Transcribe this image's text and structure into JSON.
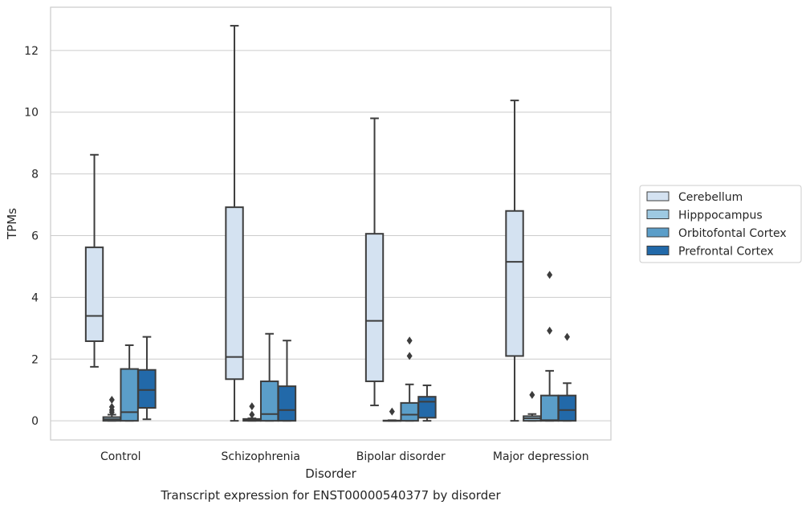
{
  "chart_data": {
    "type": "box",
    "title": "",
    "xlabel": "Disorder",
    "ylabel": "TPMs",
    "caption": "Transcript expression for ENST00000540377 by disorder",
    "ylim": [
      -0.62,
      13.4
    ],
    "yticks": [
      0,
      2,
      4,
      6,
      8,
      10,
      12
    ],
    "grid": true,
    "legend_position": "right",
    "categories": [
      "Control",
      "Schizophrenia",
      "Bipolar disorder",
      "Major depression"
    ],
    "series": [
      {
        "name": "Cerebellum",
        "color": "#d4e2f1",
        "boxes": [
          {
            "whislo": 1.75,
            "q1": 2.58,
            "med": 3.4,
            "q3": 5.62,
            "whishi": 8.62,
            "fliers": []
          },
          {
            "whislo": 0.0,
            "q1": 1.35,
            "med": 2.07,
            "q3": 6.92,
            "whishi": 12.8,
            "fliers": []
          },
          {
            "whislo": 0.5,
            "q1": 1.28,
            "med": 3.24,
            "q3": 6.06,
            "whishi": 9.8,
            "fliers": []
          },
          {
            "whislo": 0.0,
            "q1": 2.1,
            "med": 5.15,
            "q3": 6.8,
            "whishi": 10.38,
            "fliers": []
          }
        ]
      },
      {
        "name": "Hipppocampus",
        "color": "#9ec9e2",
        "boxes": [
          {
            "whislo": 0.0,
            "q1": 0.0,
            "med": 0.05,
            "q3": 0.12,
            "whishi": 0.2,
            "fliers": [
              0.28,
              0.35,
              0.45,
              0.68
            ]
          },
          {
            "whislo": 0.0,
            "q1": 0.0,
            "med": 0.02,
            "q3": 0.06,
            "whishi": 0.08,
            "fliers": [
              0.2,
              0.47
            ]
          },
          {
            "whislo": 0.0,
            "q1": 0.0,
            "med": 0.0,
            "q3": 0.01,
            "whishi": 0.02,
            "fliers": [
              0.3
            ]
          },
          {
            "whislo": 0.0,
            "q1": 0.0,
            "med": 0.08,
            "q3": 0.15,
            "whishi": 0.22,
            "fliers": [
              0.84
            ]
          }
        ]
      },
      {
        "name": "Orbitofontal Cortex",
        "color": "#5b9ec9",
        "boxes": [
          {
            "whislo": 0.0,
            "q1": 0.0,
            "med": 0.28,
            "q3": 1.68,
            "whishi": 2.45,
            "fliers": []
          },
          {
            "whislo": 0.0,
            "q1": 0.0,
            "med": 0.22,
            "q3": 1.28,
            "whishi": 2.82,
            "fliers": []
          },
          {
            "whislo": 0.0,
            "q1": 0.0,
            "med": 0.2,
            "q3": 0.58,
            "whishi": 1.18,
            "fliers": [
              2.1,
              2.6
            ]
          },
          {
            "whislo": 0.0,
            "q1": 0.0,
            "med": 0.02,
            "q3": 0.82,
            "whishi": 1.62,
            "fliers": [
              2.92,
              4.73
            ]
          }
        ]
      },
      {
        "name": "Prefrontal Cortex",
        "color": "#2269a9",
        "boxes": [
          {
            "whislo": 0.05,
            "q1": 0.42,
            "med": 1.0,
            "q3": 1.65,
            "whishi": 2.72,
            "fliers": []
          },
          {
            "whislo": 0.0,
            "q1": 0.0,
            "med": 0.35,
            "q3": 1.12,
            "whishi": 2.6,
            "fliers": []
          },
          {
            "whislo": 0.0,
            "q1": 0.1,
            "med": 0.62,
            "q3": 0.78,
            "whishi": 1.15,
            "fliers": []
          },
          {
            "whislo": 0.0,
            "q1": 0.0,
            "med": 0.35,
            "q3": 0.82,
            "whishi": 1.22,
            "fliers": [
              2.72
            ]
          }
        ]
      }
    ]
  }
}
